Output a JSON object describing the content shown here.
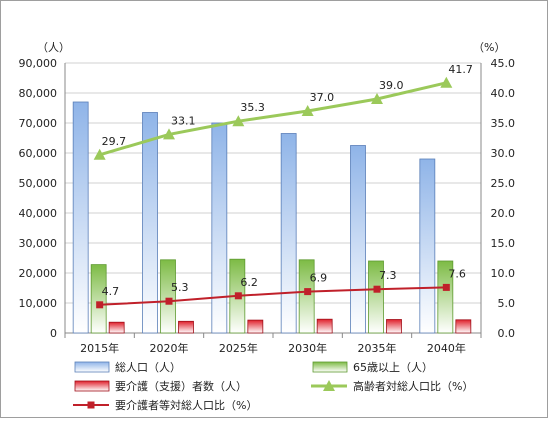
{
  "chart_data": {
    "type": "bar",
    "categories": [
      "2015年",
      "2020年",
      "2025年",
      "2030年",
      "2035年",
      "2040年"
    ],
    "y_left": {
      "unit": "（人）",
      "range": [
        0,
        90000
      ],
      "ticks": [
        "0",
        "10,000",
        "20,000",
        "30,000",
        "40,000",
        "50,000",
        "60,000",
        "70,000",
        "80,000",
        "90,000"
      ]
    },
    "y_right": {
      "unit": "（%）",
      "range": [
        0,
        45
      ],
      "ticks": [
        "0.0",
        "5.0",
        "10.0",
        "15.0",
        "20.0",
        "25.0",
        "30.0",
        "35.0",
        "40.0",
        "45.0"
      ]
    },
    "grid": true,
    "legend_position": "bottom",
    "series": [
      {
        "name": "総人口（人）",
        "kind": "bar",
        "axis": "left",
        "color": "#7fa6de",
        "values": [
          77000,
          73500,
          70000,
          66500,
          62500,
          58000
        ]
      },
      {
        "name": "65歳以上（人）",
        "kind": "bar",
        "axis": "left",
        "color": "#8fc65a",
        "values": [
          22800,
          24400,
          24600,
          24400,
          24000,
          24000
        ]
      },
      {
        "name": "要介護（支援）者数（人）",
        "kind": "bar",
        "axis": "left",
        "color": "#e8303a",
        "values": [
          3600,
          3900,
          4300,
          4600,
          4500,
          4400
        ]
      },
      {
        "name": "高齢者対総人口比（%）",
        "kind": "line",
        "axis": "right",
        "color": "#9bc95a",
        "marker": "triangle",
        "values": [
          29.7,
          33.1,
          35.3,
          37.0,
          39.0,
          41.7
        ],
        "labels": [
          "29.7",
          "33.1",
          "35.3",
          "37.0",
          "39.0",
          "41.7"
        ]
      },
      {
        "name": "要介護者等対総人口比（%）",
        "kind": "line",
        "axis": "right",
        "color": "#c0202a",
        "marker": "square",
        "values": [
          4.7,
          5.3,
          6.2,
          6.9,
          7.3,
          7.6
        ],
        "labels": [
          "4.7",
          "5.3",
          "6.2",
          "6.9",
          "7.3",
          "7.6"
        ]
      }
    ]
  }
}
